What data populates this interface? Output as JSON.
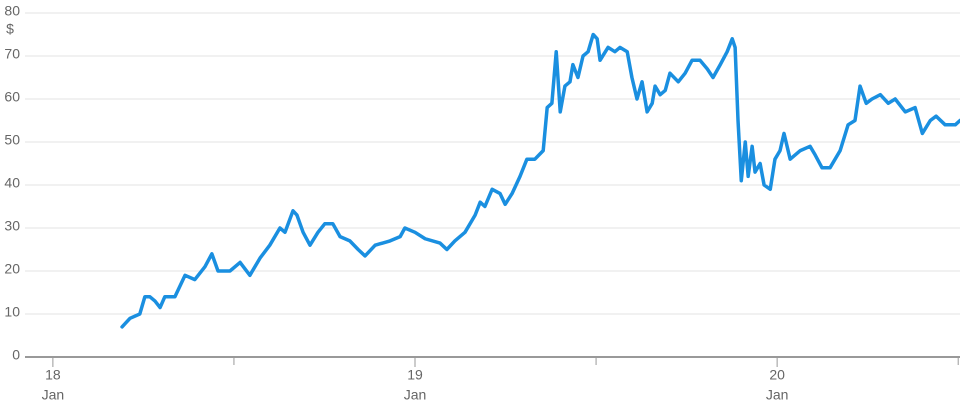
{
  "chart_data": {
    "type": "line",
    "y_unit": "$",
    "xlim": [
      17.923,
      20.505
    ],
    "xticks": [
      {
        "value": 18,
        "label": [
          "18",
          "Jan"
        ]
      },
      {
        "value": 19,
        "label": [
          "19",
          "Jan"
        ]
      },
      {
        "value": 20,
        "label": [
          "20",
          "Jan"
        ]
      }
    ],
    "xminorticks": [
      18.5,
      19.5,
      20.5
    ],
    "ylim": [
      0,
      80
    ],
    "yticks": [
      0,
      10,
      20,
      30,
      40,
      50,
      60,
      70,
      80
    ],
    "grid": true,
    "x": [
      18.191,
      18.213,
      18.24,
      18.254,
      18.268,
      18.282,
      18.296,
      18.309,
      18.337,
      18.365,
      18.392,
      18.42,
      18.439,
      18.456,
      18.489,
      18.517,
      18.544,
      18.572,
      18.599,
      18.627,
      18.641,
      18.663,
      18.674,
      18.691,
      18.71,
      18.732,
      18.751,
      18.773,
      18.793,
      18.82,
      18.843,
      18.862,
      18.89,
      18.931,
      18.959,
      18.972,
      19.0,
      19.028,
      19.069,
      19.088,
      19.11,
      19.138,
      19.166,
      19.18,
      19.193,
      19.213,
      19.235,
      19.249,
      19.268,
      19.29,
      19.309,
      19.331,
      19.354,
      19.365,
      19.378,
      19.39,
      19.401,
      19.414,
      19.428,
      19.436,
      19.45,
      19.464,
      19.478,
      19.492,
      19.503,
      19.511,
      19.533,
      19.552,
      19.566,
      19.586,
      19.599,
      19.613,
      19.627,
      19.641,
      19.655,
      19.663,
      19.677,
      19.691,
      19.704,
      19.727,
      19.746,
      19.765,
      19.787,
      19.807,
      19.823,
      19.843,
      19.862,
      19.876,
      19.884,
      19.892,
      19.901,
      19.912,
      19.92,
      19.931,
      19.939,
      19.953,
      19.964,
      19.981,
      19.994,
      20.008,
      20.019,
      20.036,
      20.064,
      20.091,
      20.105,
      20.124,
      20.146,
      20.174,
      20.196,
      20.215,
      20.229,
      20.246,
      20.262,
      20.285,
      20.307,
      20.326,
      20.354,
      20.381,
      20.401,
      20.423,
      20.439,
      20.464,
      20.492,
      20.505
    ],
    "series": [
      {
        "color": "#1a8fe0",
        "values": [
          7,
          9,
          10,
          14,
          14,
          13,
          11.5,
          14,
          14,
          19,
          18,
          21,
          24,
          20,
          20,
          22,
          19,
          23,
          26,
          30,
          29,
          34,
          33,
          29,
          26,
          29,
          31,
          31,
          28,
          27,
          25,
          23.5,
          26,
          27,
          28,
          30,
          29,
          27.5,
          26.5,
          25,
          27,
          29,
          33,
          36,
          35,
          39,
          38,
          35.5,
          38,
          42,
          46,
          46,
          48,
          58,
          59,
          71,
          57,
          63,
          64,
          68,
          65,
          70,
          71,
          75,
          74,
          69,
          72,
          71,
          72,
          71,
          65,
          60,
          64,
          57,
          59,
          63,
          61,
          62,
          66,
          64,
          66,
          69,
          69,
          67,
          65,
          68,
          71,
          74,
          72,
          55,
          41,
          50,
          42,
          49,
          43,
          45,
          40,
          39,
          46,
          48,
          52,
          46,
          48,
          49,
          47,
          44,
          44,
          48,
          54,
          55,
          63,
          59,
          60,
          61,
          59,
          60,
          57,
          58,
          52,
          55,
          56,
          54,
          54,
          55
        ]
      }
    ]
  }
}
